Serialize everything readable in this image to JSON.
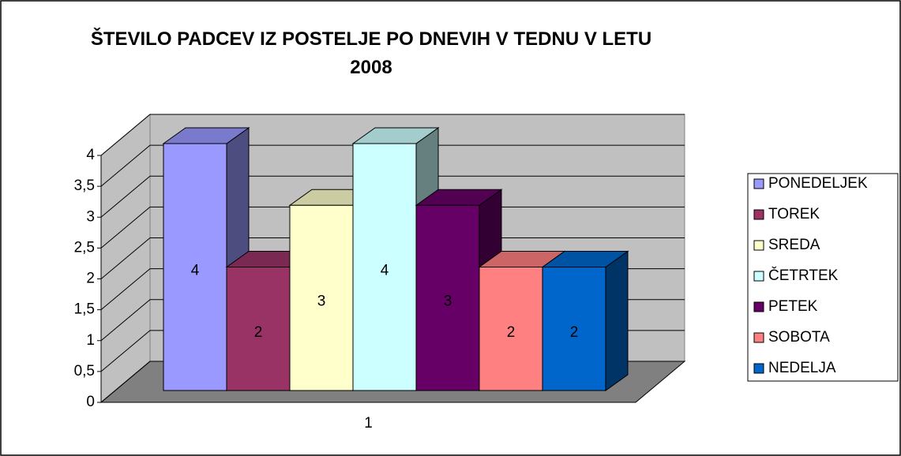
{
  "chart_data": {
    "type": "bar3d",
    "title": "ŠTEVILO PADCEV IZ POSTELJE PO DNEVIH V TEDNU V LETU 2008",
    "categories": [
      "1"
    ],
    "series": [
      {
        "name": "PONEDELJEK",
        "color": "#9999ff",
        "values": [
          4
        ]
      },
      {
        "name": "TOREK",
        "color": "#993366",
        "values": [
          2
        ]
      },
      {
        "name": "SREDA",
        "color": "#ffffcc",
        "values": [
          3
        ]
      },
      {
        "name": "ČETRTEK",
        "color": "#ccffff",
        "values": [
          4
        ]
      },
      {
        "name": "PETEK",
        "color": "#660066",
        "values": [
          3
        ]
      },
      {
        "name": "SOBOTA",
        "color": "#ff8080",
        "values": [
          2
        ]
      },
      {
        "name": "NEDELJA",
        "color": "#0066cc",
        "values": [
          2
        ]
      }
    ],
    "ylim": [
      0,
      4
    ],
    "yticks": [
      0,
      {
        "value": 0.5,
        "label": "0,5"
      },
      1,
      {
        "value": 1.5,
        "label": "1,5"
      },
      2,
      {
        "value": 2.5,
        "label": "2,5"
      },
      3,
      {
        "value": 3.5,
        "label": "3,5"
      },
      4
    ],
    "grid": true,
    "legend": "right"
  }
}
